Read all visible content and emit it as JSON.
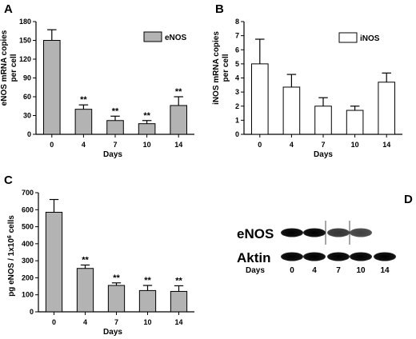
{
  "panels": {
    "A": "A",
    "B": "B",
    "C": "C",
    "D": "D"
  },
  "colors": {
    "gray_bar": "#b3b3b3",
    "white_bar": "#ffffff",
    "axis": "#000000",
    "blot_band": "#111111"
  },
  "chart_data": [
    {
      "panel": "A",
      "type": "bar",
      "categories": [
        "0",
        "4",
        "7",
        "10",
        "14"
      ],
      "values": [
        150,
        40,
        22,
        17,
        46
      ],
      "errors": [
        17,
        7,
        7,
        5,
        14
      ],
      "significance": [
        "",
        "**",
        "**",
        "**",
        "**"
      ],
      "series": [
        {
          "name": "eNOS",
          "values": [
            150,
            40,
            22,
            17,
            46
          ]
        }
      ],
      "xlabel": "Days",
      "ylabel": "eNOS mRNA copies per cell",
      "ylim": [
        0,
        180
      ],
      "yticks": [
        0,
        30,
        60,
        90,
        120,
        150,
        180
      ],
      "bar_color": "#b3b3b3",
      "legend": "top-right",
      "grid": false
    },
    {
      "panel": "B",
      "type": "bar",
      "categories": [
        "0",
        "4",
        "7",
        "10",
        "14"
      ],
      "values": [
        5.0,
        3.35,
        2.0,
        1.7,
        3.7
      ],
      "errors": [
        1.75,
        0.9,
        0.6,
        0.3,
        0.65
      ],
      "significance": [
        "",
        "",
        "",
        "",
        ""
      ],
      "series": [
        {
          "name": "iNOS",
          "values": [
            5.0,
            3.35,
            2.0,
            1.7,
            3.7
          ]
        }
      ],
      "xlabel": "Days",
      "ylabel": "iNOS mRNA copies per cell",
      "ylim": [
        0,
        8
      ],
      "yticks": [
        0,
        1,
        2,
        3,
        4,
        5,
        6,
        7,
        8
      ],
      "bar_color": "#ffffff",
      "legend": "top-right",
      "grid": false
    },
    {
      "panel": "C",
      "type": "bar",
      "categories": [
        "0",
        "4",
        "7",
        "10",
        "14"
      ],
      "values": [
        585,
        255,
        155,
        125,
        120
      ],
      "errors": [
        75,
        20,
        15,
        30,
        33
      ],
      "significance": [
        "",
        "**",
        "**",
        "**",
        "**"
      ],
      "series": [
        {
          "name": "",
          "values": [
            585,
            255,
            155,
            125,
            120
          ]
        }
      ],
      "xlabel": "Days",
      "ylabel": "pg eNOS / 1x10^6 cells",
      "ylim": [
        0,
        700
      ],
      "yticks": [
        0,
        100,
        200,
        300,
        400,
        500,
        600,
        700
      ],
      "bar_color": "#b3b3b3",
      "legend": "none",
      "grid": false
    }
  ],
  "blot": {
    "rows": [
      "eNOS",
      "Aktin"
    ],
    "days_label": "Days",
    "days": [
      "0",
      "4",
      "7",
      "10",
      "14"
    ],
    "band_intensity": {
      "eNOS": [
        1.0,
        1.0,
        0.8,
        0.75,
        0.0
      ],
      "Aktin": [
        1.0,
        1.0,
        1.0,
        1.0,
        1.0
      ]
    }
  }
}
